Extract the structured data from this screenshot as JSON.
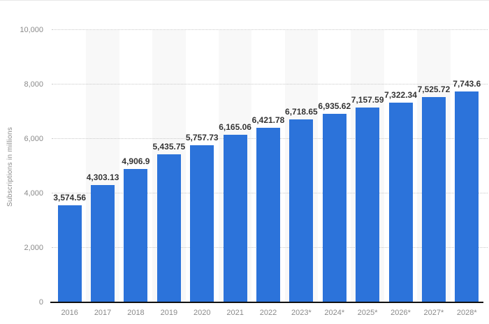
{
  "chart_data": {
    "type": "bar",
    "title": "",
    "xlabel": "",
    "ylabel": "Subscriptions in millions",
    "categories": [
      "2016",
      "2017",
      "2018",
      "2019",
      "2020",
      "2021",
      "2022",
      "2023*",
      "2024*",
      "2025*",
      "2026*",
      "2027*",
      "2028*"
    ],
    "values": [
      3574.56,
      4303.13,
      4906.9,
      5435.75,
      5757.73,
      6165.06,
      6421.78,
      6718.65,
      6935.62,
      7157.59,
      7322.34,
      7525.72,
      7743.6
    ],
    "value_labels": [
      "3,574.56",
      "4,303.13",
      "4,906.9",
      "5,435.75",
      "5,757.73",
      "6,165.06",
      "6,421.78",
      "6,718.65",
      "6,935.62",
      "7,157.59",
      "7,322.34",
      "7,525.72",
      "7,743.6"
    ],
    "ylim": [
      0,
      10000
    ],
    "y_ticks": [
      {
        "value": 10000,
        "label": "10,000"
      },
      {
        "value": 8000,
        "label": "8,000"
      },
      {
        "value": 6000,
        "label": "6,000"
      },
      {
        "value": 4000,
        "label": "4,000"
      },
      {
        "value": 2000,
        "label": "2,000"
      },
      {
        "value": 0,
        "label": "0"
      }
    ],
    "grid": "horizontal-dotted",
    "legend": "none",
    "shaded_columns": [
      1,
      3,
      5,
      7,
      9,
      11
    ],
    "colors": {
      "bar": "#2c73da",
      "value_label": "#333333",
      "tick_label": "#8a8a8a",
      "gridline": "#c9c9c9",
      "axis_line": "#111111",
      "column_band": "#f8f8f8",
      "background": "#ffffff"
    }
  }
}
